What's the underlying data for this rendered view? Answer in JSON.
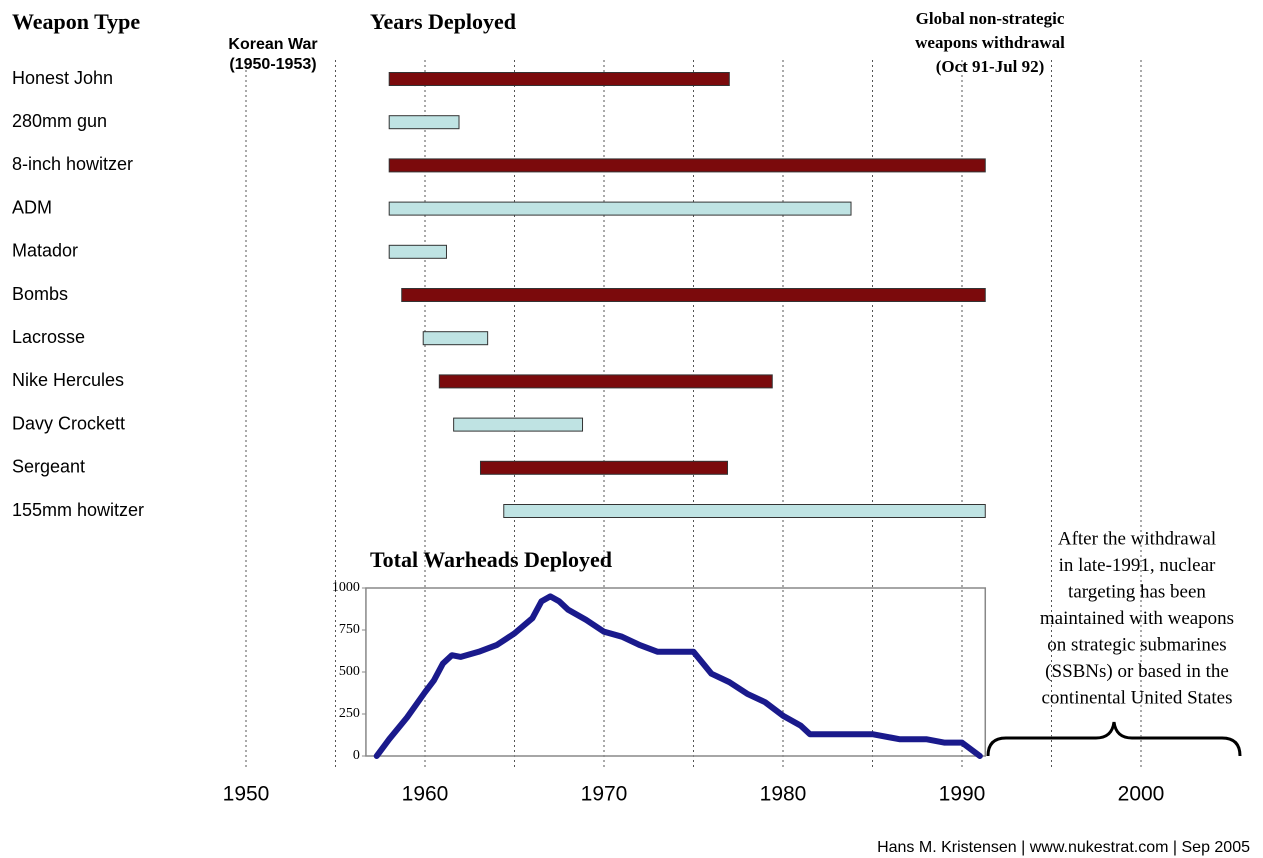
{
  "chart_data": [
    {
      "type": "gantt",
      "title": "Years Deployed",
      "category_title": "Weapon Type",
      "categories": [
        "Honest John",
        "280mm gun",
        "8-inch howitzer",
        "ADM",
        "Matador",
        "Bombs",
        "Lacrosse",
        "Nike Hercules",
        "Davy Crockett",
        "Sergeant",
        "155mm howitzer"
      ],
      "start": [
        1958,
        1958,
        1958,
        1958,
        1958,
        1958.7,
        1959.9,
        1960.8,
        1961.6,
        1963.1,
        1964.4
      ],
      "end": [
        1977,
        1961.9,
        1991.3,
        1983.8,
        1961.2,
        1991.3,
        1963.5,
        1979.4,
        1968.8,
        1976.9,
        1991.3
      ],
      "colors": [
        "#7b0a0c",
        "#bfe3e3",
        "#7b0a0c",
        "#bfe3e3",
        "#bfe3e3",
        "#7b0a0c",
        "#bfe3e3",
        "#7b0a0c",
        "#bfe3e3",
        "#7b0a0c",
        "#bfe3e3"
      ],
      "xlim": [
        1950,
        2000
      ],
      "xticks": [
        1950,
        1960,
        1970,
        1980,
        1990,
        2000
      ],
      "minor_xticks": [
        1955,
        1965,
        1975,
        1985,
        1995
      ],
      "grid": true,
      "annotations": [
        [
          "Korean War",
          "(1950-1953)"
        ],
        [
          "Global non-strategic",
          "weapons withdrawal",
          "(Oct 91-Jul 92)"
        ],
        [
          "After the withdrawal",
          "in late-1991, nuclear",
          "targeting has been",
          "maintained with weapons",
          "on strategic submarines",
          "(SSBNs) or based in the",
          "continental United States"
        ]
      ],
      "source": "Hans M. Kristensen | www.nukestrat.com | Sep 2005"
    },
    {
      "type": "line",
      "title": "Total Warheads Deployed",
      "x": [
        1957.3,
        1958,
        1959,
        1960,
        1960.5,
        1961,
        1961.5,
        1962,
        1963,
        1964,
        1965,
        1966,
        1966.5,
        1967,
        1967.5,
        1968,
        1969,
        1970,
        1971,
        1972,
        1973,
        1974,
        1975,
        1976,
        1977,
        1978,
        1979,
        1980,
        1981,
        1981.5,
        1983,
        1985,
        1986,
        1986.5,
        1988,
        1989,
        1990,
        1991
      ],
      "series": [
        {
          "name": "Total Warheads Deployed",
          "color": "#1a1a8c",
          "values": [
            0,
            100,
            230,
            380,
            450,
            550,
            600,
            590,
            620,
            660,
            730,
            820,
            920,
            950,
            920,
            870,
            810,
            740,
            710,
            660,
            620,
            620,
            620,
            490,
            440,
            370,
            320,
            240,
            180,
            130,
            130,
            130,
            110,
            100,
            100,
            80,
            80,
            0
          ]
        }
      ],
      "xlim": [
        1956.7,
        1991.3
      ],
      "ylim": [
        0,
        1000
      ],
      "yticks": [
        0,
        250,
        500,
        750,
        1000
      ]
    }
  ]
}
